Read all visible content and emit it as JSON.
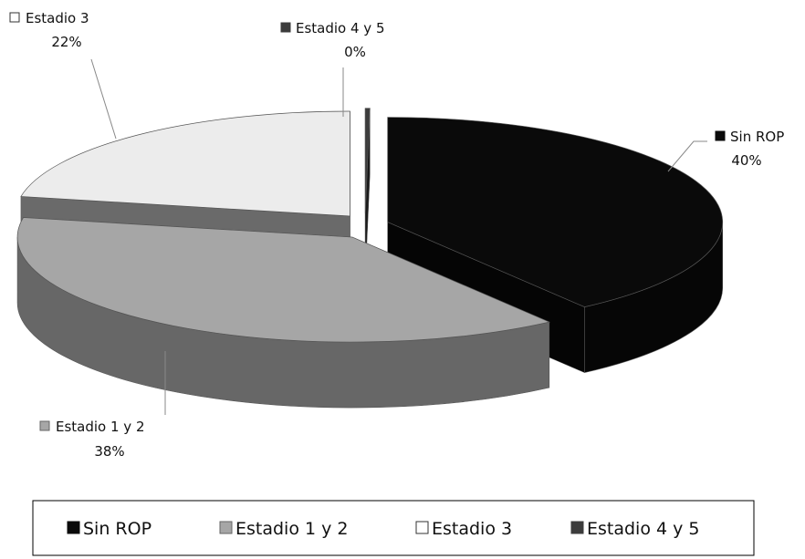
{
  "chart_data": {
    "type": "pie",
    "style": "3d-exploded",
    "categories": [
      "Sin ROP",
      "Estadio 1 y 2",
      "Estadio 3",
      "Estadio 4 y 5"
    ],
    "values": [
      40,
      38,
      22,
      0
    ],
    "unit": "%",
    "colors": [
      "#0a0a0a",
      "#a6a6a6",
      "#ececec",
      "#3c3c3c"
    ],
    "data_labels": [
      {
        "name": "Sin ROP",
        "pct": "40%"
      },
      {
        "name": "Estadio 1 y 2",
        "pct": "38%"
      },
      {
        "name": "Estadio 3",
        "pct": "22%"
      },
      {
        "name": "Estadio 4 y 5",
        "pct": "0%"
      }
    ],
    "legend": {
      "placement": "bottom",
      "items": [
        "Sin ROP",
        "Estadio 1 y 2",
        "Estadio 3",
        "Estadio 4 y 5"
      ]
    }
  }
}
